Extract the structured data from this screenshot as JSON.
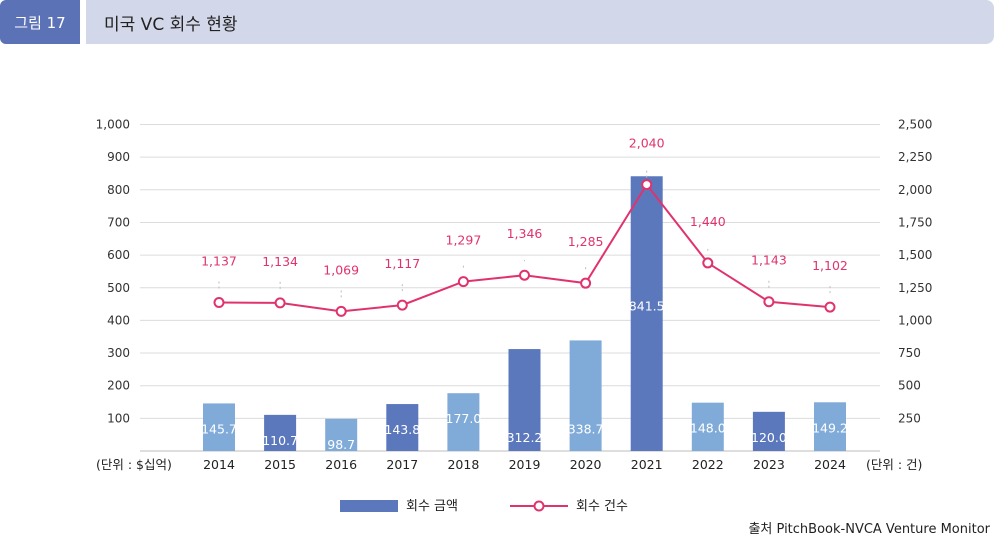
{
  "header": {
    "figure_label": "그림 17",
    "title": "미국 VC 회수 현황"
  },
  "source": "출처 PitchBook-NVCA Venture Monitor",
  "colors": {
    "bar_dark": "#5b78bd",
    "bar_light": "#80abd8",
    "line": "#e0336d",
    "grid": "#dcdcdc"
  },
  "chart_data": {
    "type": "bar",
    "categories": [
      "2014",
      "2015",
      "2016",
      "2017",
      "2018",
      "2019",
      "2020",
      "2021",
      "2022",
      "2023",
      "2024"
    ],
    "series": [
      {
        "name": "회수 금액",
        "type": "bar",
        "axis": "left",
        "values": [
          145.7,
          110.7,
          98.7,
          143.8,
          177.0,
          312.2,
          338.7,
          841.5,
          148.0,
          120.0,
          149.2
        ],
        "labels": [
          "145.7",
          "110.7",
          "98.7",
          "143.8",
          "177.0",
          "312.2",
          "338.7",
          "841.5",
          "148.0",
          "120.0",
          "149.2"
        ],
        "shades": [
          "light",
          "dark",
          "light",
          "dark",
          "light",
          "dark",
          "light",
          "dark",
          "light",
          "dark",
          "light"
        ]
      },
      {
        "name": "회수 건수",
        "type": "line",
        "axis": "right",
        "values": [
          1137,
          1134,
          1069,
          1117,
          1297,
          1346,
          1285,
          2040,
          1440,
          1143,
          1102
        ],
        "labels": [
          "1,137",
          "1,134",
          "1,069",
          "1,117",
          "1,297",
          "1,346",
          "1,285",
          "2,040",
          "1,440",
          "1,143",
          "1,102"
        ]
      }
    ],
    "left_axis": {
      "unit_label": "(단위 : $십억)",
      "ylim": [
        0,
        1000
      ],
      "ticks": [
        100,
        200,
        300,
        400,
        500,
        600,
        700,
        800,
        900,
        1000
      ],
      "tick_labels": [
        "100",
        "200",
        "300",
        "400",
        "500",
        "600",
        "700",
        "800",
        "900",
        "1,000"
      ]
    },
    "right_axis": {
      "unit_label": "(단위 : 건)",
      "ylim": [
        0,
        2500
      ],
      "ticks": [
        250,
        500,
        750,
        1000,
        1250,
        1500,
        1750,
        2000,
        2250,
        2500
      ],
      "tick_labels": [
        "250",
        "500",
        "750",
        "1,000",
        "1,250",
        "1,500",
        "1,750",
        "2,000",
        "2,250",
        "2,500"
      ]
    },
    "grid": true,
    "legend": {
      "placement": "bottom-center",
      "items": [
        "회수 금액",
        "회수 건수"
      ]
    }
  }
}
